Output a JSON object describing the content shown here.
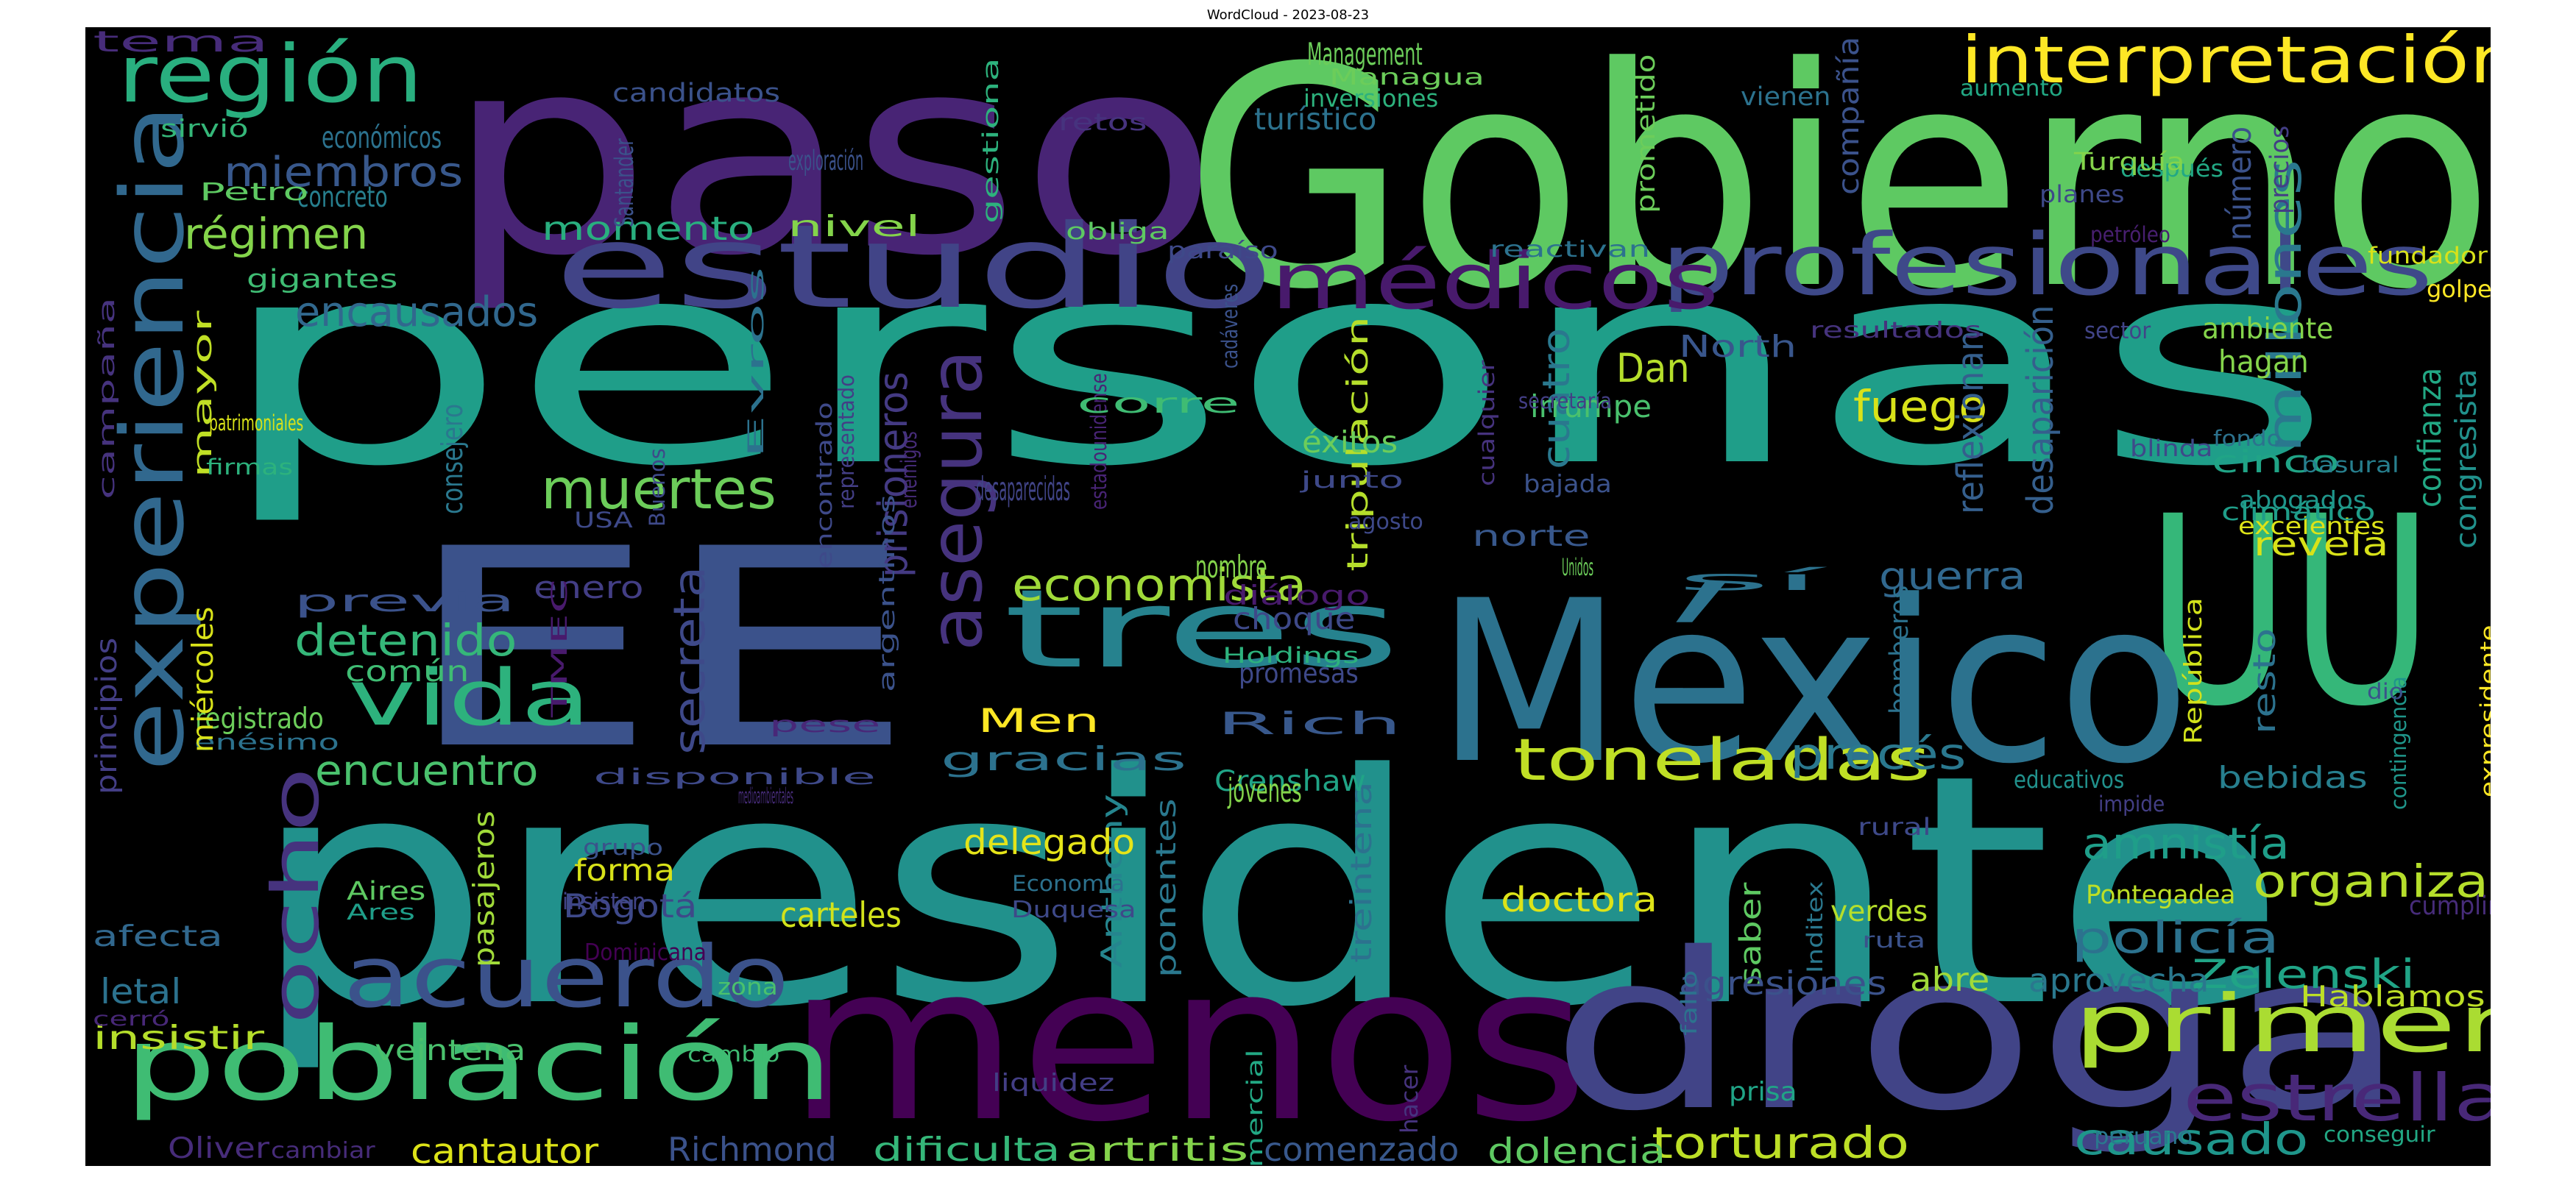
{
  "title": "WordCloud - 2023-08-23",
  "colors": {
    "background": "#000000"
  },
  "words": [
    {
      "text": "personas",
      "color": "#1f9e89"
    },
    {
      "text": "presidente",
      "color": "#21918c"
    },
    {
      "text": "menos",
      "color": "#440154"
    },
    {
      "text": "paso",
      "color": "#482475"
    },
    {
      "text": "Gobierno",
      "color": "#5ec962"
    },
    {
      "text": "EE",
      "color": "#3b528b"
    },
    {
      "text": "UU",
      "color": "#35b779"
    },
    {
      "text": "México",
      "color": "#2c728e"
    },
    {
      "text": "droga",
      "color": "#414487"
    },
    {
      "text": "estudio",
      "color": "#414487"
    },
    {
      "text": "población",
      "color": "#3fbc73"
    },
    {
      "text": "experiencia",
      "color": "#31688e"
    },
    {
      "text": "tres",
      "color": "#26828e"
    },
    {
      "text": "profesionales",
      "color": "#3e4989"
    },
    {
      "text": "médicos",
      "color": "#481a6c"
    },
    {
      "text": "acuerdo",
      "color": "#3b528b"
    },
    {
      "text": "vida",
      "color": "#2db27d"
    },
    {
      "text": "región",
      "color": "#29af7f"
    },
    {
      "text": "primer",
      "color": "#aadc32"
    },
    {
      "text": "interpretación",
      "color": "#fde725"
    },
    {
      "text": "asegura",
      "color": "#46337e"
    },
    {
      "text": "millones",
      "color": "#2a788e"
    },
    {
      "text": "ocho",
      "color": "#46337e"
    },
    {
      "text": "toneladas",
      "color": "#c0df25"
    },
    {
      "text": "estrella",
      "color": "#482878"
    },
    {
      "text": "torturado",
      "color": "#bddf26"
    },
    {
      "text": "economista",
      "color": "#a0da39"
    },
    {
      "text": "secreta",
      "color": "#3e4989"
    },
    {
      "text": "prisioneros",
      "color": "#443a83"
    },
    {
      "text": "muertes",
      "color": "#6ccd5a"
    },
    {
      "text": "encausados",
      "color": "#31688e"
    },
    {
      "text": "miembros",
      "color": "#38588c"
    },
    {
      "text": "régimen",
      "color": "#84d44b"
    },
    {
      "text": "encuentro",
      "color": "#4ac16d"
    },
    {
      "text": "detenido",
      "color": "#35b779"
    },
    {
      "text": "policía",
      "color": "#2c728e"
    },
    {
      "text": "organiza",
      "color": "#b5de2b"
    },
    {
      "text": "Zelenski",
      "color": "#20a486"
    },
    {
      "text": "amnistía",
      "color": "#1f9e89"
    },
    {
      "text": "causado",
      "color": "#1f968b"
    },
    {
      "text": "guerra",
      "color": "#31688e"
    },
    {
      "text": "procés",
      "color": "#2a788e"
    },
    {
      "text": "fuego",
      "color": "#d8e219"
    },
    {
      "text": "cuatro",
      "color": "#2a788e"
    },
    {
      "text": "desaparición",
      "color": "#355f8d"
    },
    {
      "text": "reflexionan",
      "color": "#355f8d"
    },
    {
      "text": "confianza",
      "color": "#22a884"
    },
    {
      "text": "congresista",
      "color": "#21918c"
    },
    {
      "text": "tripulación",
      "color": "#b5de2b"
    },
    {
      "text": "treintena",
      "color": "#2c728e"
    },
    {
      "text": "Anthony",
      "color": "#25858e"
    },
    {
      "text": "ponentes",
      "color": "#2a788e"
    },
    {
      "text": "carteles",
      "color": "#d2e21b"
    },
    {
      "text": "delegado",
      "color": "#e5e419"
    },
    {
      "text": "doctora",
      "color": "#dde318"
    },
    {
      "text": "dolencia",
      "color": "#5ec962"
    },
    {
      "text": "comenzado",
      "color": "#38588c"
    },
    {
      "text": "artritis",
      "color": "#84d44b"
    },
    {
      "text": "dificulta",
      "color": "#35b779"
    },
    {
      "text": "cantautor",
      "color": "#dde318"
    },
    {
      "text": "Richmond",
      "color": "#3b528b"
    },
    {
      "text": "Oliver",
      "color": "#472c7a"
    },
    {
      "text": "cambiar",
      "color": "#472c7a"
    },
    {
      "text": "veintena",
      "color": "#4ac16d"
    },
    {
      "text": "insistir",
      "color": "#b5de2b"
    },
    {
      "text": "letal",
      "color": "#2c728e"
    },
    {
      "text": "afecta",
      "color": "#31688e"
    },
    {
      "text": "cerró",
      "color": "#482878"
    },
    {
      "text": "forma",
      "color": "#d8e219"
    },
    {
      "text": "Bogotá",
      "color": "#3e4989"
    },
    {
      "text": "Dominicana",
      "color": "#440154"
    },
    {
      "text": "pasajeros",
      "color": "#a0da39"
    },
    {
      "text": "zona",
      "color": "#4ac16d"
    },
    {
      "text": "cambio",
      "color": "#3fbc73"
    },
    {
      "text": "grupo",
      "color": "#3b528b"
    },
    {
      "text": "insisten",
      "color": "#414487"
    },
    {
      "text": "Aires",
      "color": "#5ec962"
    },
    {
      "text": "Ares",
      "color": "#1f9e89"
    },
    {
      "text": "Economía",
      "color": "#2c728e"
    },
    {
      "text": "Duquesa",
      "color": "#3e4989"
    },
    {
      "text": "liquidez",
      "color": "#433e85"
    },
    {
      "text": "comercial",
      "color": "#22a884"
    },
    {
      "text": "hacer",
      "color": "#46337e"
    },
    {
      "text": "saber",
      "color": "#5ec962"
    },
    {
      "text": "verdes",
      "color": "#b5de2b"
    },
    {
      "text": "ruta",
      "color": "#3b528b"
    },
    {
      "text": "prisa",
      "color": "#20a486"
    },
    {
      "text": "peruano",
      "color": "#2a788e"
    },
    {
      "text": "conseguir",
      "color": "#22a884"
    },
    {
      "text": "Hablamos",
      "color": "#bddf26"
    },
    {
      "text": "aprovecha",
      "color": "#2a788e"
    },
    {
      "text": "abre",
      "color": "#a0da39"
    },
    {
      "text": "agresiones",
      "color": "#3b528b"
    },
    {
      "text": "Pontegadea",
      "color": "#bddf26"
    },
    {
      "text": "cumplir",
      "color": "#472c7a"
    },
    {
      "text": "Inditex",
      "color": "#2a788e"
    },
    {
      "text": "fallo",
      "color": "#2c728e"
    },
    {
      "text": "rural",
      "color": "#3e4989"
    },
    {
      "text": "educativos",
      "color": "#21918c"
    },
    {
      "text": "impide",
      "color": "#433e85"
    },
    {
      "text": "bebidas",
      "color": "#277f8e"
    },
    {
      "text": "República",
      "color": "#d2e21b"
    },
    {
      "text": "contingencia",
      "color": "#1f968b"
    },
    {
      "text": "expresidente",
      "color": "#fde725"
    },
    {
      "text": "dio",
      "color": "#3b528b"
    },
    {
      "text": "resto",
      "color": "#2c728e"
    },
    {
      "text": "bomberos",
      "color": "#2c728e"
    },
    {
      "text": "revela",
      "color": "#d8e219"
    },
    {
      "text": "excelentes",
      "color": "#dde318"
    },
    {
      "text": "abogados",
      "color": "#1f968b"
    },
    {
      "text": "climático",
      "color": "#1f9e89"
    },
    {
      "text": "cinco",
      "color": "#20a486"
    },
    {
      "text": "basural",
      "color": "#277f8e"
    },
    {
      "text": "fondo",
      "color": "#2c728e"
    },
    {
      "text": "blinda",
      "color": "#3e4989"
    },
    {
      "text": "hagan",
      "color": "#84d44b"
    },
    {
      "text": "ambiente",
      "color": "#84d44b"
    },
    {
      "text": "golpe",
      "color": "#fde725"
    },
    {
      "text": "fundador",
      "color": "#d8e219"
    },
    {
      "text": "sector",
      "color": "#414487"
    },
    {
      "text": "resultados",
      "color": "#46337e"
    },
    {
      "text": "North",
      "color": "#39568c"
    },
    {
      "text": "irrumpe",
      "color": "#4ac16d"
    },
    {
      "text": "Dan",
      "color": "#b5de2b"
    },
    {
      "text": "número",
      "color": "#3b528b"
    },
    {
      "text": "precios",
      "color": "#433e85"
    },
    {
      "text": "petróleo",
      "color": "#481f70"
    },
    {
      "text": "planes",
      "color": "#3e4989"
    },
    {
      "text": "después",
      "color": "#22a884"
    },
    {
      "text": "Turquía",
      "color": "#84d44b"
    },
    {
      "text": "aumento",
      "color": "#22a884"
    },
    {
      "text": "vienen",
      "color": "#2c728e"
    },
    {
      "text": "compañía",
      "color": "#3b528b"
    },
    {
      "text": "prometido",
      "color": "#6ccd5a"
    },
    {
      "text": "reactivan",
      "color": "#2c728e"
    },
    {
      "text": "Management",
      "color": "#6ccd5a"
    },
    {
      "text": "Managua",
      "color": "#6ccd5a"
    },
    {
      "text": "inversiones",
      "color": "#2db27d"
    },
    {
      "text": "turístico",
      "color": "#2c728e"
    },
    {
      "text": "retos",
      "color": "#46337e"
    },
    {
      "text": "obliga",
      "color": "#5ec962"
    },
    {
      "text": "gestiona",
      "color": "#2db27d"
    },
    {
      "text": "exploración",
      "color": "#3b528b"
    },
    {
      "text": "nivel",
      "color": "#84d44b"
    },
    {
      "text": "momento",
      "color": "#29af7f"
    },
    {
      "text": "candidatos",
      "color": "#3b528b"
    },
    {
      "text": "Santander",
      "color": "#3b528b"
    },
    {
      "text": "paraíso",
      "color": "#3e4989"
    },
    {
      "text": "cadáveres",
      "color": "#3b528b"
    },
    {
      "text": "Evros",
      "color": "#2c728e"
    },
    {
      "text": "representado",
      "color": "#433e85"
    },
    {
      "text": "encontrado",
      "color": "#3e4989"
    },
    {
      "text": "argentinos",
      "color": "#3b528b"
    },
    {
      "text": "estadounidense",
      "color": "#482475"
    },
    {
      "text": "cualquier",
      "color": "#46337e"
    },
    {
      "text": "secretaría",
      "color": "#433e85"
    },
    {
      "text": "bajada",
      "color": "#3b528b"
    },
    {
      "text": "norte",
      "color": "#38588c"
    },
    {
      "text": "Unidos",
      "color": "#6ccd5a"
    },
    {
      "text": "sí",
      "color": "#2c728e"
    },
    {
      "text": "diálogo",
      "color": "#481a6c"
    },
    {
      "text": "Holdings",
      "color": "#2db27d"
    },
    {
      "text": "promesas",
      "color": "#3e4989"
    },
    {
      "text": "choque",
      "color": "#3e4989"
    },
    {
      "text": "nombre",
      "color": "#84d44b"
    },
    {
      "text": "Rich",
      "color": "#38588c"
    },
    {
      "text": "Crenshaw",
      "color": "#20a486"
    },
    {
      "text": "jóvenes",
      "color": "#84d44b"
    },
    {
      "text": "Men",
      "color": "#fde725"
    },
    {
      "text": "gracias",
      "color": "#2c728e"
    },
    {
      "text": "desaparecidas",
      "color": "#414487"
    },
    {
      "text": "éxitos",
      "color": "#6ccd5a"
    },
    {
      "text": "junto",
      "color": "#3e4989"
    },
    {
      "text": "agosto",
      "color": "#3e4989"
    },
    {
      "text": "corre",
      "color": "#3fbc73"
    },
    {
      "text": "enemigos",
      "color": "#472c7a"
    },
    {
      "text": "enero",
      "color": "#433e85"
    },
    {
      "text": "común",
      "color": "#3fbc73"
    },
    {
      "text": "previa",
      "color": "#3b528b"
    },
    {
      "text": "registrado",
      "color": "#6ccd5a"
    },
    {
      "text": "enésimo",
      "color": "#2c728e"
    },
    {
      "text": "principios",
      "color": "#433e85"
    },
    {
      "text": "miércoles",
      "color": "#d8e219"
    },
    {
      "text": "consejero",
      "color": "#2a788e"
    },
    {
      "text": "mayor",
      "color": "#c0df25"
    },
    {
      "text": "económicos",
      "color": "#2c728e"
    },
    {
      "text": "sirvió",
      "color": "#35b779"
    },
    {
      "text": "tema",
      "color": "#472c7a"
    },
    {
      "text": "concreto",
      "color": "#277f8e"
    },
    {
      "text": "Petro",
      "color": "#5ec962"
    },
    {
      "text": "gigantes",
      "color": "#3fbc73"
    },
    {
      "text": "campaña",
      "color": "#46337e"
    },
    {
      "text": "patrimoniales",
      "color": "#d8e219"
    },
    {
      "text": "firmas",
      "color": "#2db27d"
    },
    {
      "text": "Buenos",
      "color": "#3e4989"
    },
    {
      "text": "USA",
      "color": "#3e4989"
    },
    {
      "text": "TMEC",
      "color": "#481a6c"
    },
    {
      "text": "disponible",
      "color": "#3e4989"
    },
    {
      "text": "medioambientales",
      "color": "#472c7a"
    },
    {
      "text": "pese",
      "color": "#482878"
    },
    {
      "text": "semestre",
      "color": "#3b528b"
    }
  ]
}
